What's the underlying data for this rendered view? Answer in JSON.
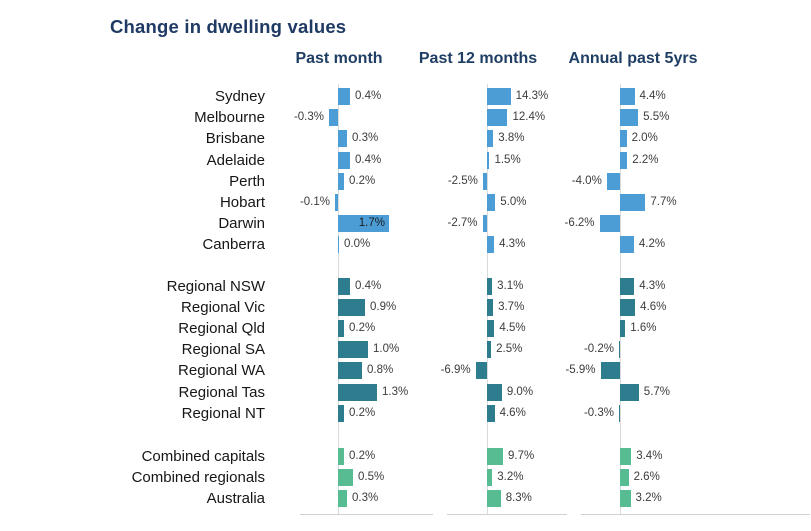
{
  "chart_data": {
    "type": "bar",
    "orientation": "horizontal",
    "title": "Change in dwelling values",
    "unit": "%",
    "columns": [
      "Past month",
      "Past 12 months",
      "Annual past 5yrs"
    ],
    "legend": "none",
    "grid": "off",
    "colors": {
      "capitals": "#4c9dd6",
      "regional": "#2e7d8e",
      "combined": "#57bc92",
      "title": "#1f3a63",
      "axis_line": "#dadada"
    },
    "groups": [
      {
        "name": "capitals",
        "color": "#4c9dd6",
        "rows": [
          {
            "label": "Sydney",
            "values": [
              0.4,
              14.3,
              4.4
            ]
          },
          {
            "label": "Melbourne",
            "values": [
              -0.3,
              12.4,
              5.5
            ]
          },
          {
            "label": "Brisbane",
            "values": [
              0.3,
              3.8,
              2.0
            ]
          },
          {
            "label": "Adelaide",
            "values": [
              0.4,
              1.5,
              2.2
            ]
          },
          {
            "label": "Perth",
            "values": [
              0.2,
              -2.5,
              -4.0
            ]
          },
          {
            "label": "Hobart",
            "values": [
              -0.1,
              5.0,
              7.7
            ]
          },
          {
            "label": "Darwin",
            "values": [
              1.7,
              -2.7,
              -6.2
            ]
          },
          {
            "label": "Canberra",
            "values": [
              0.0,
              4.3,
              4.2
            ]
          }
        ]
      },
      {
        "name": "regional",
        "color": "#2e7d8e",
        "rows": [
          {
            "label": "Regional NSW",
            "values": [
              0.4,
              3.1,
              4.3
            ]
          },
          {
            "label": "Regional Vic",
            "values": [
              0.9,
              3.7,
              4.6
            ]
          },
          {
            "label": "Regional Qld",
            "values": [
              0.2,
              4.5,
              1.6
            ]
          },
          {
            "label": "Regional SA",
            "values": [
              1.0,
              2.5,
              -0.2
            ]
          },
          {
            "label": "Regional WA",
            "values": [
              0.8,
              -6.9,
              -5.9
            ]
          },
          {
            "label": "Regional Tas",
            "values": [
              1.3,
              9.0,
              5.7
            ]
          },
          {
            "label": "Regional NT",
            "values": [
              0.2,
              4.6,
              -0.3
            ]
          }
        ]
      },
      {
        "name": "combined",
        "color": "#57bc92",
        "rows": [
          {
            "label": "Combined capitals",
            "values": [
              0.2,
              9.7,
              3.4
            ]
          },
          {
            "label": "Combined regionals",
            "values": [
              0.5,
              3.2,
              2.6
            ]
          },
          {
            "label": "Australia",
            "values": [
              0.3,
              8.3,
              3.2
            ]
          }
        ]
      }
    ]
  }
}
